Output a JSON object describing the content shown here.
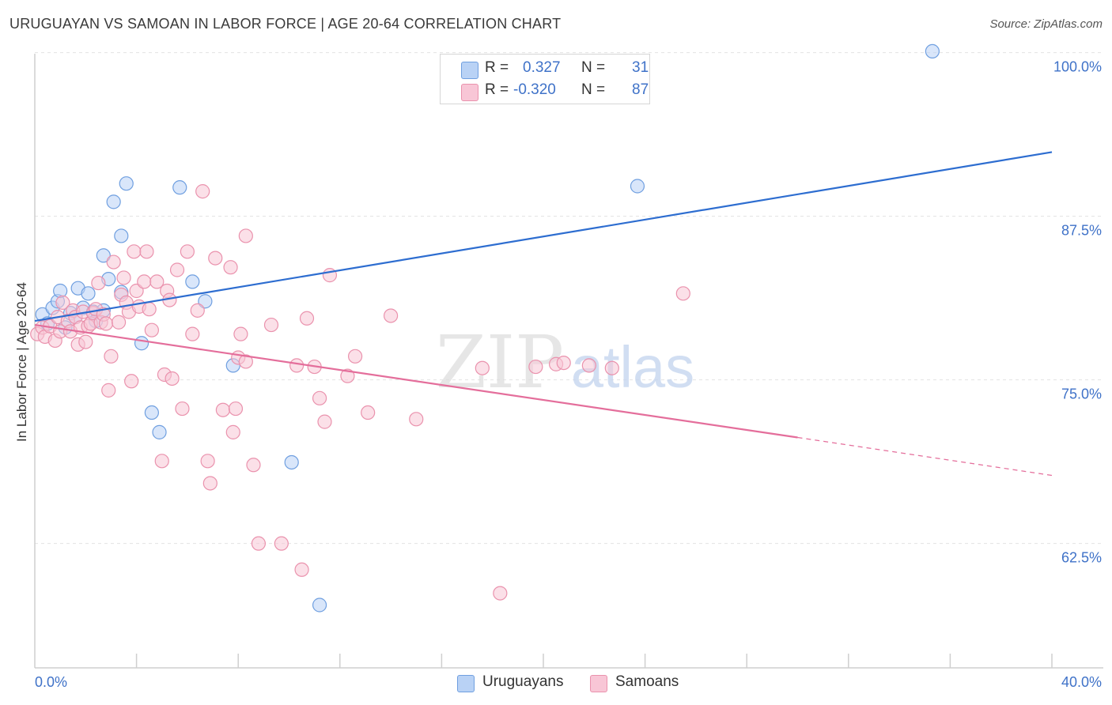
{
  "title": "URUGUAYAN VS SAMOAN IN LABOR FORCE | AGE 20-64 CORRELATION CHART",
  "source": "Source: ZipAtlas.com",
  "legend": {
    "r_label": "R =",
    "n_label": "N =",
    "uruguayans": {
      "r": "0.327",
      "n": "31"
    },
    "samoans": {
      "r": "-0.320",
      "n": "87"
    }
  },
  "chart_data": {
    "type": "scatter",
    "title": "URUGUAYAN VS SAMOAN IN LABOR FORCE | AGE 20-64 CORRELATION CHART",
    "xlabel": "",
    "ylabel": "In Labor Force | Age 20-64",
    "xlim": [
      0,
      40
    ],
    "ylim": [
      53,
      101
    ],
    "x_tick_labels": [
      "0.0%",
      "40.0%"
    ],
    "y_ticks": [
      62.5,
      75.0,
      87.5,
      100.0
    ],
    "y_tick_labels": [
      "62.5%",
      "75.0%",
      "87.5%",
      "100.0%"
    ],
    "grid": true,
    "legend_position": "top-center",
    "watermark": "ZIPatlas",
    "series": [
      {
        "name": "Uruguayans",
        "color": "#6f9fe0",
        "fill": "#b9d2f5",
        "line_color": "#2d6dd0",
        "trend": {
          "x": [
            0,
            40
          ],
          "y": [
            79.5,
            92.4
          ]
        },
        "points": [
          [
            0.3,
            80.0
          ],
          [
            0.5,
            79.3
          ],
          [
            0.7,
            80.5
          ],
          [
            0.9,
            81.0
          ],
          [
            1.0,
            81.8
          ],
          [
            1.2,
            79.0
          ],
          [
            1.4,
            80.1
          ],
          [
            1.6,
            79.8
          ],
          [
            1.7,
            82.0
          ],
          [
            1.9,
            80.5
          ],
          [
            2.1,
            81.6
          ],
          [
            2.3,
            80.2
          ],
          [
            2.4,
            79.5
          ],
          [
            2.7,
            80.3
          ],
          [
            2.7,
            84.5
          ],
          [
            2.9,
            82.7
          ],
          [
            3.1,
            88.6
          ],
          [
            3.4,
            86.0
          ],
          [
            3.4,
            81.7
          ],
          [
            3.6,
            90.0
          ],
          [
            4.2,
            77.8
          ],
          [
            4.6,
            72.5
          ],
          [
            4.9,
            71.0
          ],
          [
            5.7,
            89.7
          ],
          [
            6.2,
            82.5
          ],
          [
            6.7,
            81.0
          ],
          [
            7.8,
            76.1
          ],
          [
            10.1,
            68.7
          ],
          [
            11.2,
            57.8
          ],
          [
            23.7,
            89.8
          ],
          [
            35.3,
            100.1
          ]
        ]
      },
      {
        "name": "Samoans",
        "color": "#ea92ad",
        "fill": "#f8c6d6",
        "line_color": "#e46e9b",
        "trend": {
          "x": [
            0,
            30.0
          ],
          "y": [
            79.2,
            70.6
          ]
        },
        "trend_dashed": {
          "x": [
            30.0,
            40
          ],
          "y": [
            70.6,
            67.7
          ]
        },
        "points": [
          [
            0.1,
            78.5
          ],
          [
            0.3,
            79.0
          ],
          [
            0.4,
            78.3
          ],
          [
            0.6,
            79.1
          ],
          [
            0.8,
            78.0
          ],
          [
            0.9,
            79.8
          ],
          [
            1.0,
            78.7
          ],
          [
            1.1,
            80.9
          ],
          [
            1.3,
            79.5
          ],
          [
            1.4,
            78.7
          ],
          [
            1.5,
            80.3
          ],
          [
            1.6,
            79.8
          ],
          [
            1.7,
            77.7
          ],
          [
            1.8,
            79.0
          ],
          [
            1.9,
            80.2
          ],
          [
            2.0,
            77.9
          ],
          [
            2.1,
            79.1
          ],
          [
            2.2,
            79.3
          ],
          [
            2.3,
            80.1
          ],
          [
            2.4,
            80.4
          ],
          [
            2.5,
            82.4
          ],
          [
            2.6,
            79.4
          ],
          [
            2.7,
            80.0
          ],
          [
            2.8,
            79.3
          ],
          [
            2.9,
            74.2
          ],
          [
            3.0,
            76.8
          ],
          [
            3.1,
            84.0
          ],
          [
            3.3,
            79.4
          ],
          [
            3.4,
            81.5
          ],
          [
            3.5,
            82.8
          ],
          [
            3.6,
            80.9
          ],
          [
            3.7,
            80.2
          ],
          [
            3.8,
            74.9
          ],
          [
            3.9,
            84.8
          ],
          [
            4.0,
            81.8
          ],
          [
            4.1,
            80.6
          ],
          [
            4.3,
            82.5
          ],
          [
            4.4,
            84.8
          ],
          [
            4.5,
            80.4
          ],
          [
            4.6,
            78.8
          ],
          [
            4.8,
            82.5
          ],
          [
            5.0,
            68.8
          ],
          [
            5.1,
            75.4
          ],
          [
            5.2,
            81.8
          ],
          [
            5.3,
            81.1
          ],
          [
            5.4,
            75.1
          ],
          [
            5.6,
            83.4
          ],
          [
            5.8,
            72.8
          ],
          [
            6.0,
            84.8
          ],
          [
            6.2,
            78.5
          ],
          [
            6.4,
            80.3
          ],
          [
            6.6,
            89.4
          ],
          [
            6.8,
            68.8
          ],
          [
            6.9,
            67.1
          ],
          [
            7.1,
            84.3
          ],
          [
            7.4,
            72.7
          ],
          [
            7.7,
            83.6
          ],
          [
            7.8,
            71.0
          ],
          [
            7.9,
            72.8
          ],
          [
            8.0,
            76.7
          ],
          [
            8.1,
            78.5
          ],
          [
            8.3,
            86.0
          ],
          [
            8.6,
            68.5
          ],
          [
            8.8,
            62.5
          ],
          [
            9.3,
            79.2
          ],
          [
            9.7,
            62.5
          ],
          [
            10.3,
            76.1
          ],
          [
            10.5,
            60.5
          ],
          [
            10.7,
            79.7
          ],
          [
            11.0,
            76.0
          ],
          [
            11.2,
            73.6
          ],
          [
            11.4,
            71.8
          ],
          [
            11.6,
            83.0
          ],
          [
            12.3,
            75.3
          ],
          [
            12.6,
            76.8
          ],
          [
            13.1,
            72.5
          ],
          [
            14.0,
            79.9
          ],
          [
            15.0,
            72.0
          ],
          [
            17.6,
            75.9
          ],
          [
            18.3,
            58.7
          ],
          [
            19.7,
            76.0
          ],
          [
            20.5,
            76.2
          ],
          [
            20.8,
            76.3
          ],
          [
            21.8,
            76.1
          ],
          [
            22.7,
            75.9
          ],
          [
            25.5,
            81.6
          ],
          [
            8.3,
            76.4
          ]
        ]
      }
    ]
  }
}
